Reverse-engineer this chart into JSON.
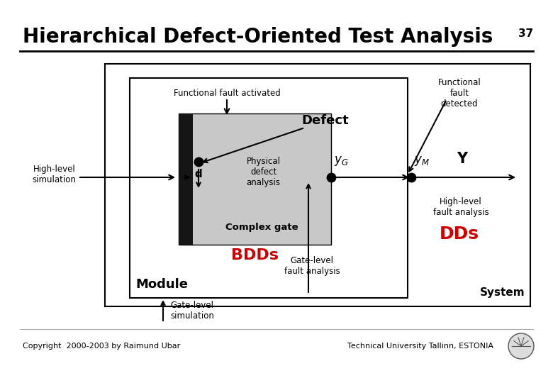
{
  "title": "Hierarchical Defect-Oriented Test Analysis",
  "title_fontsize": 20,
  "title_color": "#000000",
  "bg_color": "#ffffff",
  "border_color": "#999999",
  "slide_number": "37",
  "footer_left": "Copyright  2000-2003 by Raimund Ubar",
  "footer_right": "Technical University Tallinn, ESTONIA",
  "footer_fontsize": 8,
  "red_color": "#cc0000",
  "black": "#000000",
  "gray_fill": "#c0c0c0",
  "dark_fill": "#1a1a1a"
}
